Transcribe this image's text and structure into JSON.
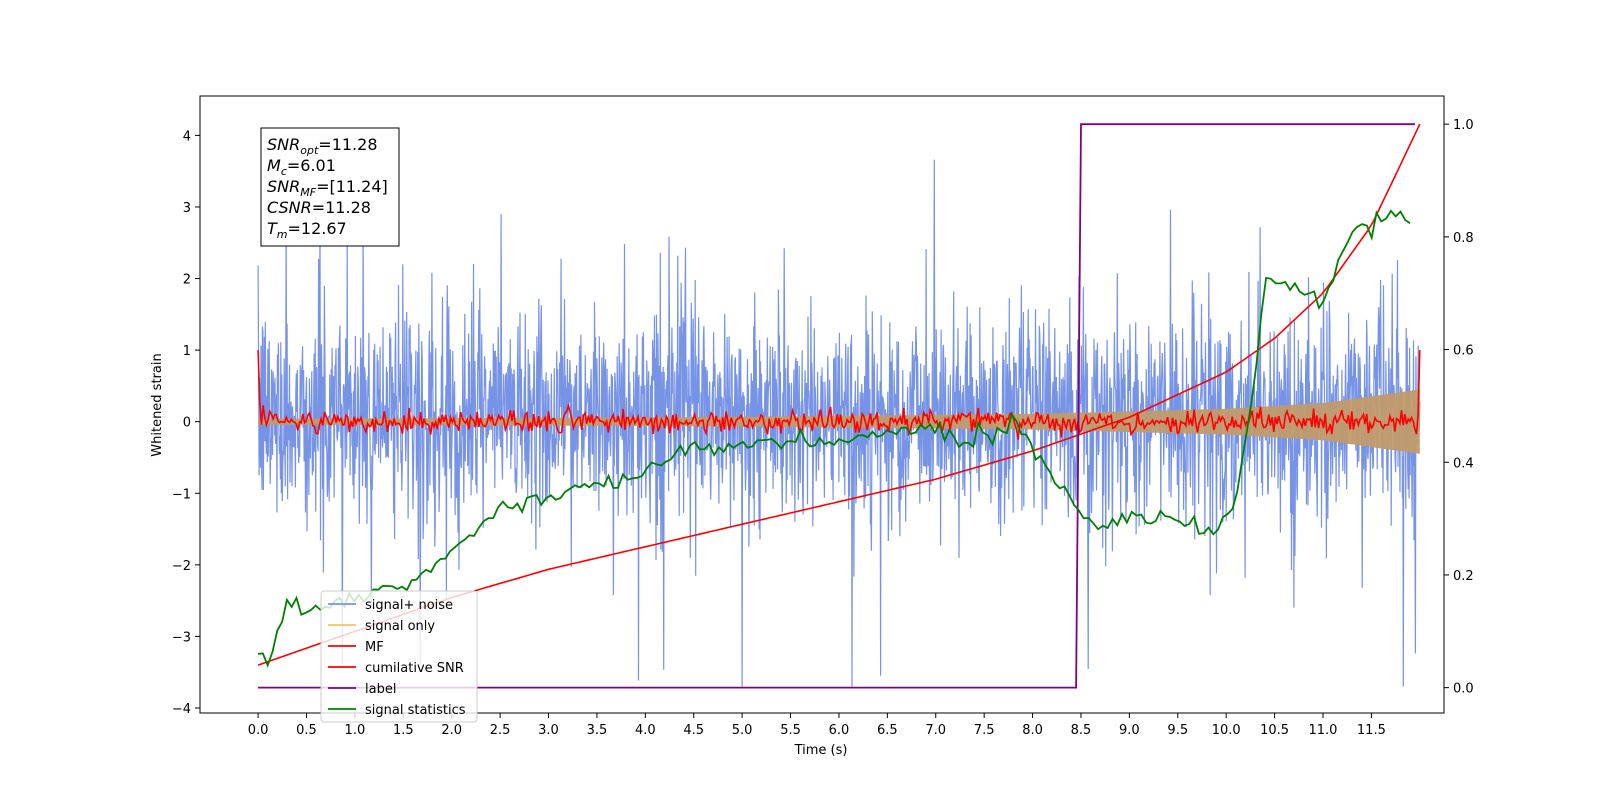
{
  "chart_data": {
    "type": "line",
    "xlabel": "Time (s)",
    "ylabel": "Whitened strain",
    "xlim": [
      -0.6,
      12.25
    ],
    "ylim_left": [
      -4.07,
      4.55
    ],
    "ylim_right": [
      -0.045,
      1.05
    ],
    "x_ticks": [
      "0.0",
      "0.5",
      "1.0",
      "1.5",
      "2.0",
      "2.5",
      "3.0",
      "3.5",
      "4.0",
      "4.5",
      "5.0",
      "5.5",
      "6.0",
      "6.5",
      "7.0",
      "7.5",
      "8.0",
      "8.5",
      "9.0",
      "9.5",
      "10.0",
      "10.5",
      "11.0",
      "11.5"
    ],
    "y_ticks_left": [
      "4",
      "3",
      "2",
      "1",
      "0",
      "−1",
      "−2",
      "−3",
      "−4"
    ],
    "y_ticks_right": [
      "1.0",
      "0.8",
      "0.6",
      "0.4",
      "0.2",
      "0.0"
    ],
    "grid": false,
    "legend_position": "lower-left",
    "info_box": {
      "lines": [
        {
          "base": "SNR",
          "sub": "opt",
          "value": "=11.28"
        },
        {
          "base": "M",
          "sub": "c",
          "value": "=6.01"
        },
        {
          "base": "SNR",
          "sub": "MF",
          "value": "=[11.24]"
        },
        {
          "base": "CSNR",
          "sub": "",
          "value": "=11.28"
        },
        {
          "base": "T",
          "sub": "m",
          "value": "=12.67"
        }
      ]
    },
    "series": [
      {
        "name": "signal+ noise",
        "color": "#7693e6",
        "axis": "left",
        "description_values": {
          "x_range": [
            0,
            12
          ],
          "typical_range": [
            -2.0,
            2.2
          ],
          "peaks": [
            4.2,
            -3.7
          ]
        }
      },
      {
        "name": "signal only",
        "color": "#f5b35c",
        "axis": "left",
        "envelope": {
          "x": [
            0,
            2,
            4,
            6,
            8,
            10,
            11,
            12
          ],
          "amplitude": [
            0.04,
            0.05,
            0.06,
            0.08,
            0.11,
            0.18,
            0.26,
            0.45
          ]
        }
      },
      {
        "name": "MF",
        "color": "#ff0000",
        "axis": "left",
        "x_range": [
          0,
          12
        ],
        "level": 0.0,
        "noise": 0.08,
        "start_value": 1.0,
        "end_value": 1.0
      },
      {
        "name": "cumilative SNR",
        "color": "#ff0000",
        "axis": "right",
        "x": [
          0,
          1,
          2,
          3,
          4,
          5,
          6,
          7,
          8,
          9,
          10,
          10.5,
          11,
          11.5,
          12
        ],
        "y": [
          0.04,
          0.1,
          0.16,
          0.21,
          0.25,
          0.29,
          0.33,
          0.37,
          0.42,
          0.48,
          0.56,
          0.62,
          0.7,
          0.82,
          1.0
        ]
      },
      {
        "name": "label",
        "color": "#800080",
        "axis": "right",
        "x": [
          0,
          8.45,
          8.5,
          11.95
        ],
        "y": [
          0,
          0,
          1,
          1
        ]
      },
      {
        "name": "signal statistics",
        "color": "#008000",
        "axis": "right",
        "x": [
          0,
          0.1,
          0.3,
          0.5,
          1.0,
          1.5,
          2.0,
          2.5,
          3.0,
          3.5,
          4.0,
          4.3,
          4.5,
          5.0,
          5.3,
          5.5,
          6.0,
          6.5,
          7.0,
          7.3,
          7.5,
          7.8,
          8.0,
          8.2,
          8.5,
          8.7,
          9.0,
          9.5,
          9.9,
          10.1,
          10.3,
          10.4,
          10.6,
          10.8,
          11.0,
          11.2,
          11.4,
          11.5,
          11.7,
          11.9
        ],
        "y": [
          0.06,
          0.04,
          0.15,
          0.14,
          0.16,
          0.18,
          0.24,
          0.32,
          0.34,
          0.36,
          0.38,
          0.41,
          0.42,
          0.43,
          0.44,
          0.43,
          0.44,
          0.45,
          0.46,
          0.43,
          0.45,
          0.47,
          0.43,
          0.38,
          0.31,
          0.29,
          0.3,
          0.3,
          0.27,
          0.33,
          0.55,
          0.73,
          0.72,
          0.71,
          0.68,
          0.78,
          0.83,
          0.81,
          0.84,
          0.82
        ]
      }
    ]
  }
}
